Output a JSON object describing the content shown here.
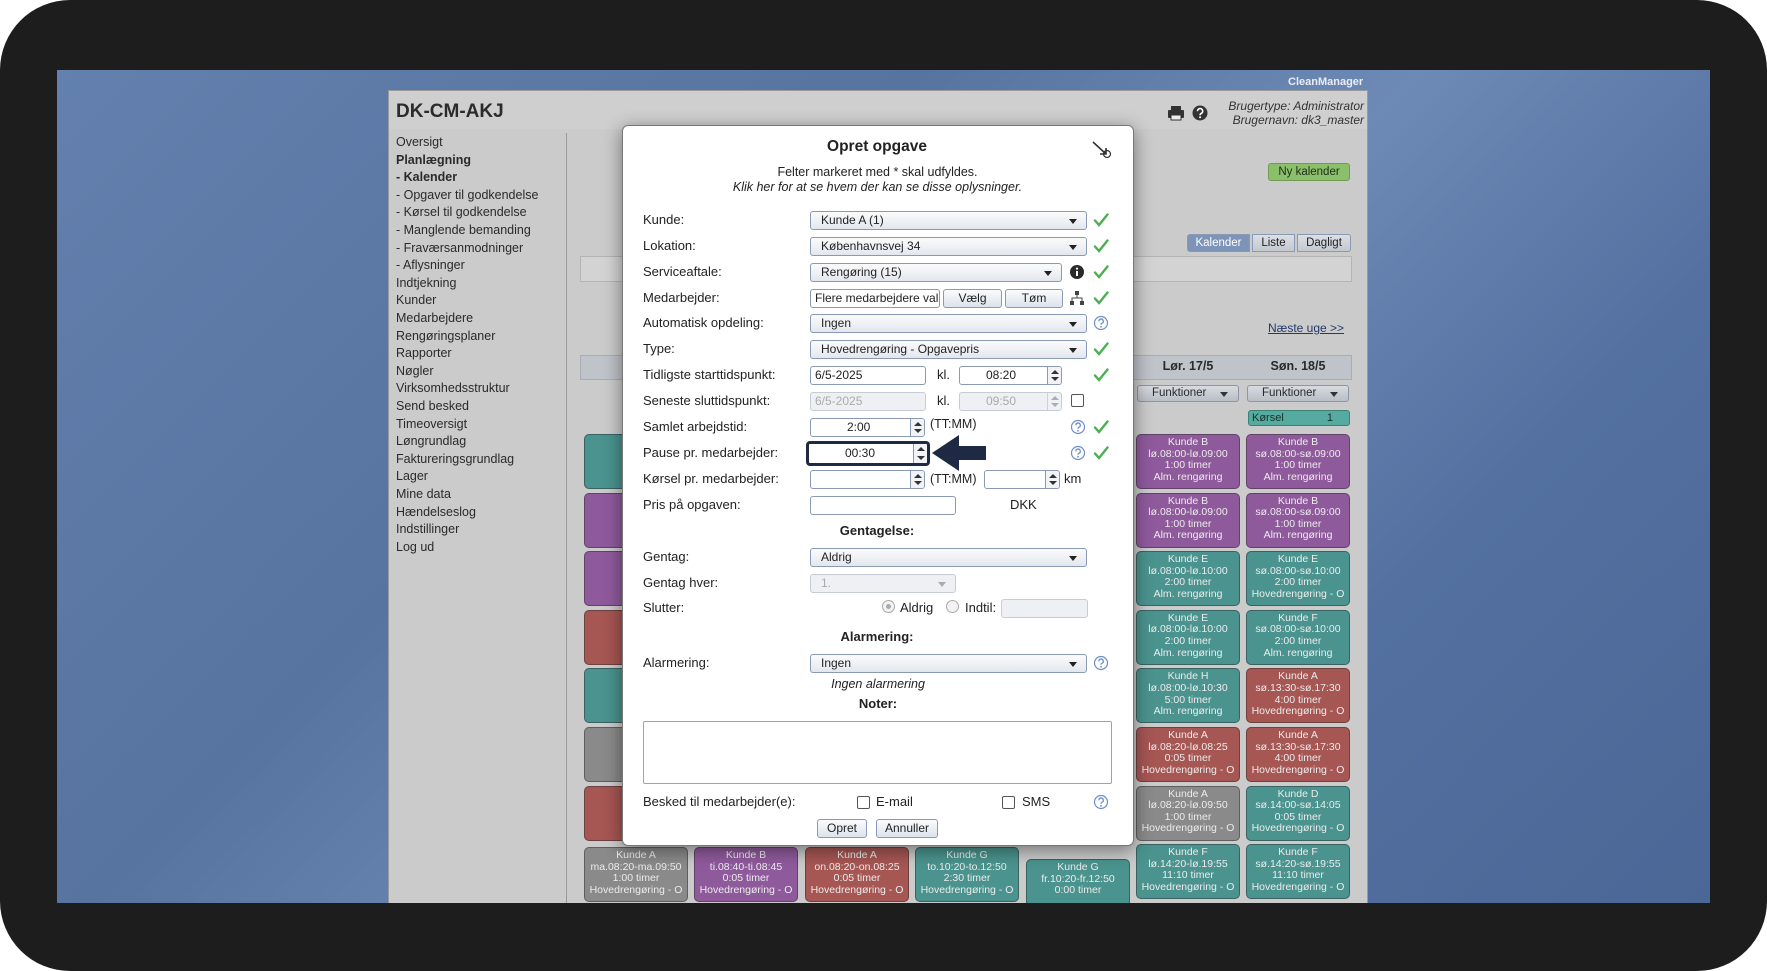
{
  "brand": "CleanManager",
  "header": {
    "title": "DK-CM-AKJ",
    "user_type": "Brugertype: Administrator",
    "user_name": "Brugernavn: dk3_master"
  },
  "menu": [
    "Oversigt",
    "Planlægning",
    "- Kalender",
    "- Opgaver til godkendelse",
    "- Kørsel til godkendelse",
    "- Manglende bemanding",
    "- Fraværsanmodninger",
    "- Aflysninger",
    "Indtjekning",
    "Kunder",
    "Medarbejdere",
    "Rengøringsplaner",
    "Rapporter",
    "Nøgler",
    "Virksomhedsstruktur",
    "Send besked",
    "Timeoversigt",
    "Løngrundlag",
    "Faktureringsgrundlag",
    "Lager",
    "Mine data",
    "Hændelseslog",
    "Indstillinger",
    "Log ud"
  ],
  "calendar": {
    "new_calendar": "Ny kalender",
    "tabs": [
      "Kalender",
      "Liste",
      "Dagligt"
    ],
    "next_week": "Næste uge >>",
    "driving": {
      "label": "Kørsel",
      "count": "1"
    },
    "days": [
      {
        "label": "Lør. 17/5",
        "functions": "Funktioner",
        "cards": [
          {
            "title": "Kunde B",
            "time": "lø.08:00-lø.09:00",
            "duration": "1:00 timer",
            "kind": "Alm. rengøring",
            "color": "#8f5a9c"
          },
          {
            "title": "Kunde B",
            "time": "lø.08:00-lø.09:00",
            "duration": "1:00 timer",
            "kind": "Alm. rengøring",
            "color": "#8f5a9c"
          },
          {
            "title": "Kunde E",
            "time": "lø.08:00-lø.10:00",
            "duration": "2:00 timer",
            "kind": "Alm. rengøring",
            "color": "#4a938e"
          },
          {
            "title": "Kunde E",
            "time": "lø.08:00-lø.10:00",
            "duration": "2:00 timer",
            "kind": "Alm. rengøring",
            "color": "#4a938e"
          },
          {
            "title": "Kunde H",
            "time": "lø.08:00-lø.10:30",
            "duration": "5:00 timer",
            "kind": "Alm. rengøring",
            "color": "#4a938e"
          },
          {
            "title": "Kunde A",
            "time": "lø.08:20-lø.08:25",
            "duration": "0:05 timer",
            "kind": "Hovedrengøring - O",
            "color": "#a65653"
          },
          {
            "title": "Kunde A",
            "time": "lø.08:20-lø.09:50",
            "duration": "1:00 timer",
            "kind": "Hovedrengøring - O",
            "color": "#8a8a8a"
          },
          {
            "title": "Kunde F",
            "time": "lø.14:20-lø.19:55",
            "duration": "11:10 timer",
            "kind": "Hovedrengøring - O",
            "color": "#4a938e"
          }
        ]
      },
      {
        "label": "Søn. 18/5",
        "functions": "Funktioner",
        "cards": [
          {
            "title": "Kunde B",
            "time": "sø.08:00-sø.09:00",
            "duration": "1:00 timer",
            "kind": "Alm. rengøring",
            "color": "#8f5a9c"
          },
          {
            "title": "Kunde B",
            "time": "sø.08:00-sø.09:00",
            "duration": "1:00 timer",
            "kind": "Alm. rengøring",
            "color": "#8f5a9c"
          },
          {
            "title": "Kunde E",
            "time": "sø.08:00-sø.10:00",
            "duration": "2:00 timer",
            "kind": "Hovedrengøring - O",
            "color": "#4a938e"
          },
          {
            "title": "Kunde F",
            "time": "sø.08:00-sø.10:00",
            "duration": "2:00 timer",
            "kind": "Alm. rengøring",
            "color": "#4a938e"
          },
          {
            "title": "Kunde A",
            "time": "sø.13:30-sø.17:30",
            "duration": "4:00 timer",
            "kind": "Hovedrengøring - O",
            "color": "#a65653"
          },
          {
            "title": "Kunde A",
            "time": "sø.13:30-sø.17:30",
            "duration": "4:00 timer",
            "kind": "Hovedrengøring - O",
            "color": "#a65653"
          },
          {
            "title": "Kunde D",
            "time": "sø.14:00-sø.14:05",
            "duration": "0:05 timer",
            "kind": "Hovedrengøring - O",
            "color": "#4a938e"
          },
          {
            "title": "Kunde F",
            "time": "sø.14:20-sø.19:55",
            "duration": "11:10 timer",
            "kind": "Hovedrengøring - O",
            "color": "#4a938e"
          }
        ]
      }
    ],
    "bottom_row": [
      {
        "title": "Kunde A",
        "time": "ma.08:20-ma.09:50",
        "duration": "1:00 timer",
        "kind": "Hovedrengøring - O",
        "color": "#8a8a8a"
      },
      {
        "title": "Kunde B",
        "time": "ti.08:40-ti.08:45",
        "duration": "0:05 timer",
        "kind": "Hovedrengøring - O",
        "color": "#8f5a9c"
      },
      {
        "title": "Kunde A",
        "time": "on.08:20-on.08:25",
        "duration": "0:05 timer",
        "kind": "Hovedrengøring - O",
        "color": "#a65653"
      },
      {
        "title": "Kunde G",
        "time": "to.10:20-to.12:50",
        "duration": "2:30 timer",
        "kind": "Hovedrengøring - O",
        "color": "#4a938e"
      },
      {
        "title": "Kunde G",
        "time": "fr.10:20-fr.12:50",
        "duration": "0:00 timer",
        "color": "#4a938e"
      }
    ]
  },
  "dialog": {
    "title": "Opret opgave",
    "required_note": "Felter markeret med * skal udfyldes.",
    "visibility_link": "Klik her for at se hvem der kan se disse oplysninger.",
    "customer": {
      "label": "Kunde:",
      "value": "Kunde A (1)"
    },
    "location": {
      "label": "Lokation:",
      "value": "Københavnsvej 34"
    },
    "service_agreement": {
      "label": "Serviceaftale:",
      "value": "Rengøring (15)"
    },
    "employee": {
      "label": "Medarbejder:",
      "value": "Flere medarbejdere val",
      "choose": "Vælg",
      "clear": "Tøm"
    },
    "auto_split": {
      "label": "Automatisk opdeling:",
      "value": "Ingen"
    },
    "type": {
      "label": "Type:",
      "value": "Hovedrengøring - Opgavepris"
    },
    "earliest_start": {
      "label": "Tidligste starttidspunkt:",
      "date": "6/5-2025",
      "time_label": "kl.",
      "time": "08:20"
    },
    "latest_end": {
      "label": "Seneste sluttidspunkt:",
      "date": "6/5-2025",
      "time_label": "kl.",
      "time": "09:50"
    },
    "total_work": {
      "label": "Samlet arbejdstid:",
      "value": "2:00",
      "unit": "(TT:MM)"
    },
    "break": {
      "label": "Pause pr. medarbejder:",
      "value": "00:30"
    },
    "driving": {
      "label": "Kørsel pr. medarbejder:",
      "unit": "(TT:MM)",
      "distance_unit": "km"
    },
    "price": {
      "label": "Pris på opgaven:",
      "currency": "DKK"
    },
    "repeat_heading": "Gentagelse:",
    "repeat": {
      "label": "Gentag:",
      "value": "Aldrig"
    },
    "repeat_every": {
      "label": "Gentag hver:",
      "value": "1."
    },
    "ends": {
      "label": "Slutter:",
      "never": "Aldrig",
      "until": "Indtil:"
    },
    "alarm_heading": "Alarmering:",
    "alarm": {
      "label": "Alarmering:",
      "value": "Ingen",
      "note": "Ingen alarmering"
    },
    "notes_heading": "Noter:",
    "notify": {
      "label": "Besked til medarbejder(e):",
      "email": "E-mail",
      "sms": "SMS"
    },
    "submit": "Opret",
    "cancel": "Annuller"
  }
}
